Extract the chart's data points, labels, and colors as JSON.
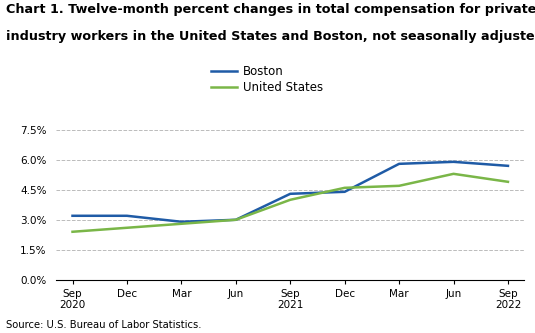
{
  "title_line1": "Chart 1. Twelve-month percent changes in total compensation for private",
  "title_line2": "industry workers in the United States and Boston, not seasonally adjusted",
  "source": "Source: U.S. Bureau of Labor Statistics.",
  "x_labels": [
    "Sep\n2020",
    "Dec",
    "Mar",
    "Jun",
    "Sep\n2021",
    "Dec",
    "Mar",
    "Jun",
    "Sep\n2022"
  ],
  "x_positions": [
    0,
    1,
    2,
    3,
    4,
    5,
    6,
    7,
    8
  ],
  "boston_values": [
    0.032,
    0.032,
    0.029,
    0.03,
    0.043,
    0.044,
    0.058,
    0.059,
    0.057
  ],
  "us_values": [
    0.024,
    0.026,
    0.028,
    0.03,
    0.04,
    0.046,
    0.047,
    0.053,
    0.049
  ],
  "boston_color": "#1f5ba6",
  "us_color": "#7ab648",
  "ylim": [
    0.0,
    0.09
  ],
  "yticks": [
    0.0,
    0.015,
    0.03,
    0.045,
    0.06,
    0.075
  ],
  "ytick_labels": [
    "0.0%",
    "1.5%",
    "3.0%",
    "4.5%",
    "6.0%",
    "7.5%"
  ],
  "legend_labels": [
    "Boston",
    "United States"
  ],
  "line_width": 1.8,
  "background_color": "#ffffff",
  "grid_color": "#bbbbbb"
}
